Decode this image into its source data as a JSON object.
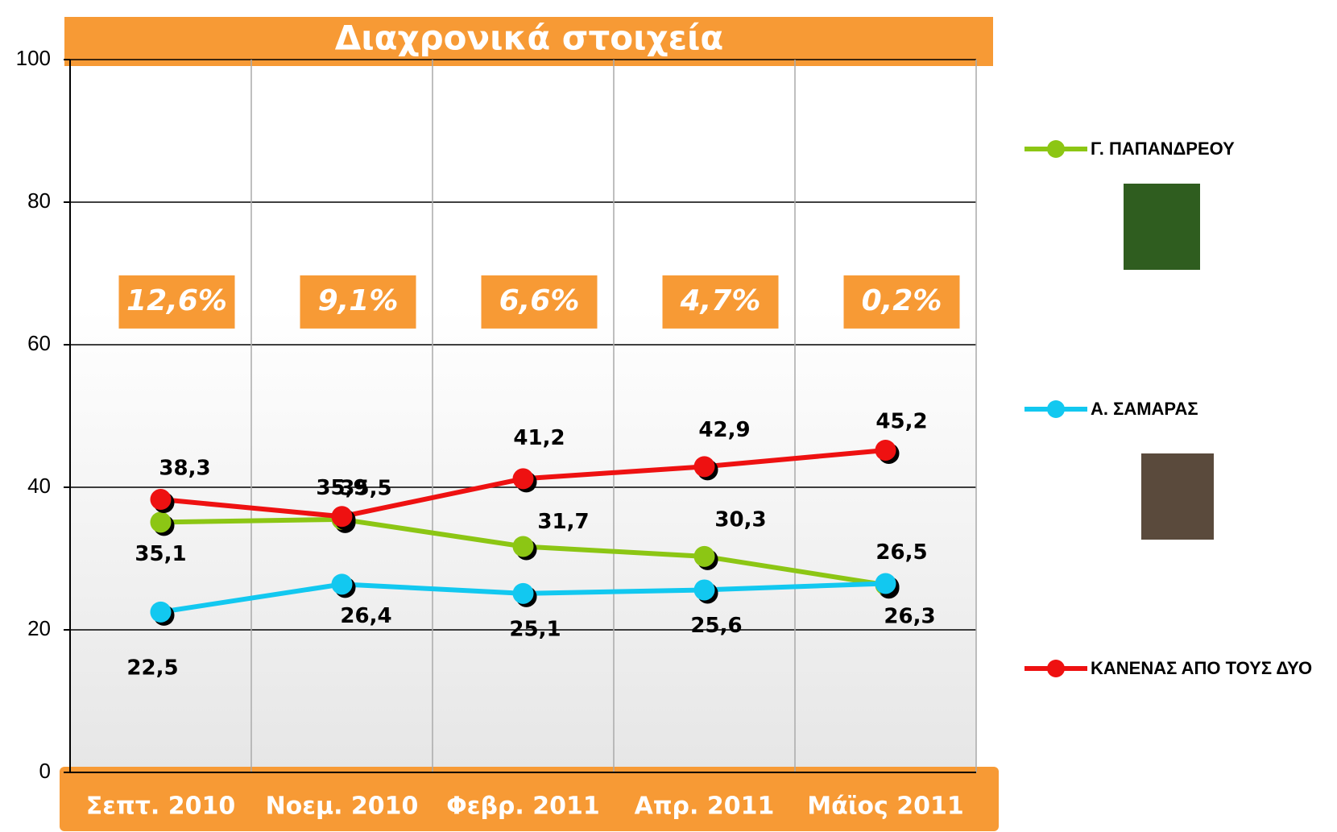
{
  "chart_data": {
    "type": "line",
    "title": "Διαχρονικά στοιχεία",
    "categories": [
      "Σεπτ. 2010",
      "Νοεμ. 2010",
      "Φεβρ. 2011",
      "Απρ. 2011",
      "Μάϊος 2011"
    ],
    "series": [
      {
        "name": "Γ. ΠΑΠΑΝΔΡΕΟΥ",
        "color": "#8cc614",
        "values": [
          35.1,
          35.5,
          31.7,
          30.3,
          26.3
        ],
        "value_labels": [
          "35,1",
          "35,5",
          "31,7",
          "30,3",
          "26,3"
        ]
      },
      {
        "name": "Α. ΣΑΜΑΡΑΣ",
        "color": "#12c8f0",
        "values": [
          22.5,
          26.4,
          25.1,
          25.6,
          26.5
        ],
        "value_labels": [
          "22,5",
          "26,4",
          "25,1",
          "25,6",
          "26,5"
        ]
      },
      {
        "name": "ΚΑΝΕΝΑΣ ΑΠΟ ΤΟΥΣ ΔΥΟ",
        "color": "#ee1111",
        "values": [
          38.3,
          35.9,
          41.2,
          42.9,
          45.2
        ],
        "value_labels": [
          "38,3",
          "35,9",
          "41,2",
          "42,9",
          "45,2"
        ]
      }
    ],
    "annotations": [
      "12,6%",
      "9,1%",
      "6,6%",
      "4,7%",
      "0,2%"
    ],
    "ylim": [
      0,
      100
    ],
    "yticks": [
      0,
      20,
      40,
      60,
      80,
      100
    ],
    "grid": true,
    "legend": "right"
  }
}
